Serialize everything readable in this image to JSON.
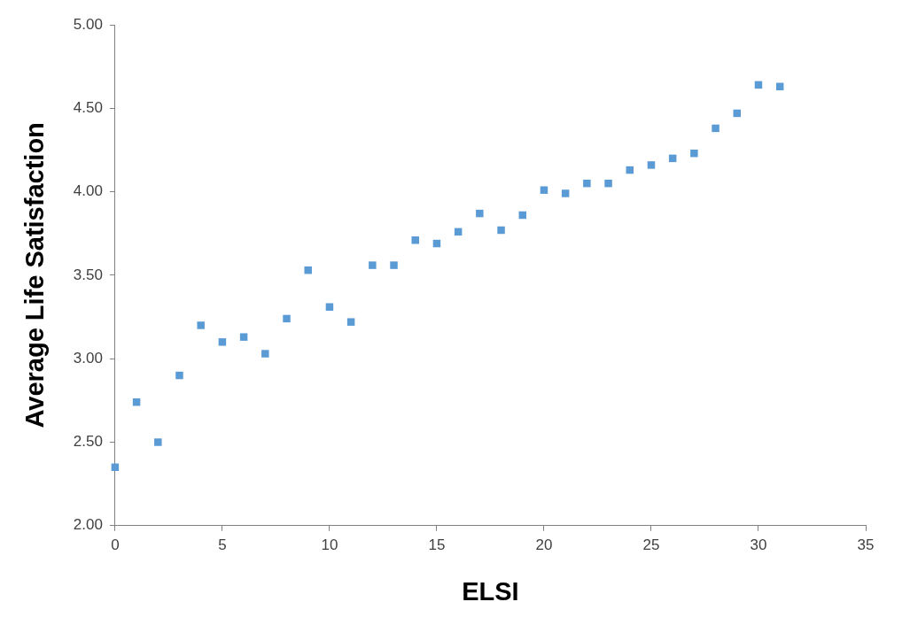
{
  "chart_data": {
    "type": "scatter",
    "xlabel": "ELSI",
    "ylabel": "Average Life Satisfaction",
    "x": [
      0,
      1,
      2,
      3,
      4,
      5,
      6,
      7,
      8,
      9,
      10,
      11,
      12,
      13,
      14,
      15,
      16,
      17,
      18,
      19,
      20,
      21,
      22,
      23,
      24,
      25,
      26,
      27,
      28,
      29,
      30,
      31
    ],
    "series": [
      {
        "color": "#5b9bd5",
        "values": [
          2.35,
          2.74,
          2.5,
          2.9,
          3.2,
          3.1,
          3.13,
          3.03,
          3.24,
          3.53,
          3.31,
          3.22,
          3.56,
          3.56,
          3.71,
          3.69,
          3.76,
          3.87,
          3.77,
          3.86,
          4.01,
          3.99,
          4.05,
          4.05,
          4.13,
          4.16,
          4.2,
          4.23,
          4.38,
          4.47,
          4.64,
          4.63
        ]
      }
    ],
    "xlim": [
      0,
      35
    ],
    "xticks": [
      0,
      5,
      10,
      15,
      20,
      25,
      30,
      35
    ],
    "ylim": [
      2,
      5
    ],
    "yticks": [
      {
        "value": 2,
        "label": "2.00"
      },
      {
        "value": 2.5,
        "label": "2.50"
      },
      {
        "value": 3,
        "label": "3.00"
      },
      {
        "value": 3.5,
        "label": "3.50"
      },
      {
        "value": 4,
        "label": "4.00"
      },
      {
        "value": 4.5,
        "label": "4.50"
      },
      {
        "value": 5,
        "label": "5.00"
      }
    ],
    "grid": false,
    "legend": false,
    "marker": "square"
  }
}
